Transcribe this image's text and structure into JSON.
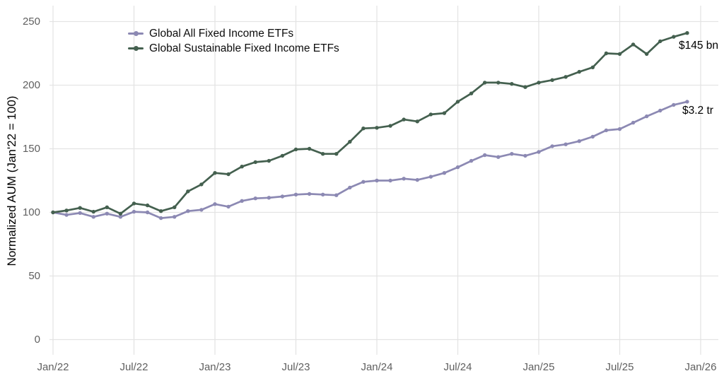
{
  "chart_data": {
    "type": "line",
    "title": "",
    "xlabel": "",
    "ylabel": "Normalized AUM (Jan'22 = 100)",
    "x_frequency": "monthly",
    "months": [
      "2022-01",
      "2022-02",
      "2022-03",
      "2022-04",
      "2022-05",
      "2022-06",
      "2022-07",
      "2022-08",
      "2022-09",
      "2022-10",
      "2022-11",
      "2022-12",
      "2023-01",
      "2023-02",
      "2023-03",
      "2023-04",
      "2023-05",
      "2023-06",
      "2023-07",
      "2023-08",
      "2023-09",
      "2023-10",
      "2023-11",
      "2023-12",
      "2024-01",
      "2024-02",
      "2024-03",
      "2024-04",
      "2024-05",
      "2024-06",
      "2024-07",
      "2024-08",
      "2024-09",
      "2024-10",
      "2024-11",
      "2024-12",
      "2025-01",
      "2025-02",
      "2025-03",
      "2025-04",
      "2025-05",
      "2025-06",
      "2025-07",
      "2025-08",
      "2025-09",
      "2025-10",
      "2025-11",
      "2025-12"
    ],
    "x_tick_labels": [
      "Jan/22",
      "Jul/22",
      "Jan/23",
      "Jul/23",
      "Jan/24",
      "Jul/24",
      "Jan/25",
      "Jul/25",
      "Jan/26"
    ],
    "y_ticks": [
      0,
      50,
      100,
      150,
      200,
      250
    ],
    "ylim": [
      0,
      262
    ],
    "grid": true,
    "legend_position": "top-left-inside",
    "colors": {
      "background": "#ffffff",
      "gridline": "#e4e4e4",
      "tick_label": "#5f5f5f",
      "text": "#000000"
    },
    "series": [
      {
        "name": "Global All Fixed Income ETFs",
        "color": "#8c89b3",
        "end_label": "$3.2 tr",
        "values": [
          100,
          98,
          99.5,
          96.5,
          99,
          96.5,
          100.5,
          100,
          95.5,
          96.5,
          101,
          102,
          106.5,
          104.5,
          109,
          111,
          111.5,
          112.5,
          114,
          114.5,
          114,
          113.5,
          119.5,
          124,
          125,
          125,
          126.5,
          125.5,
          128,
          131,
          135.5,
          140.5,
          145,
          143.5,
          146,
          144.5,
          147.5,
          152,
          153.5,
          156,
          159.5,
          164.5,
          165.5,
          170.5,
          175.5,
          180,
          184.5,
          187
        ]
      },
      {
        "name": "Global Sustainable Fixed Income ETFs",
        "color": "#44604f",
        "end_label": "$145 bn",
        "values": [
          100,
          101.5,
          103.5,
          100.5,
          104,
          99,
          107,
          105.5,
          101,
          104,
          116.5,
          122,
          131,
          130,
          136,
          139.5,
          140.5,
          144.5,
          149.5,
          150,
          146,
          146,
          155.5,
          166,
          166.5,
          168,
          173,
          171.5,
          177,
          178,
          187,
          193.5,
          202,
          202,
          201,
          198.5,
          202,
          204,
          206.5,
          210.5,
          214,
          225,
          224.5,
          232,
          224.5,
          234.5,
          238,
          241
        ]
      }
    ]
  }
}
